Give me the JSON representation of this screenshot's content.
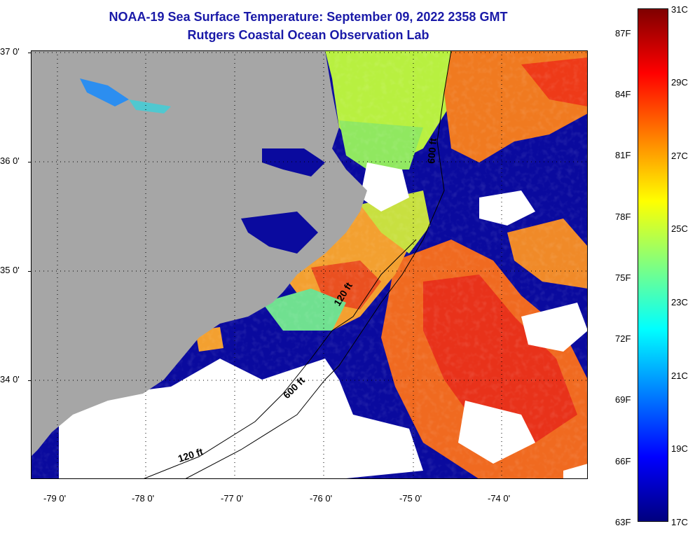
{
  "title": {
    "line1": "NOAA-19 Sea Surface Temperature:  September 09, 2022 2358 GMT",
    "line2": "Rutgers Coastal Ocean Observation Lab"
  },
  "map": {
    "lon_labels": [
      "-79 0'",
      "-78 0'",
      "-77 0'",
      "-76 0'",
      "-75 0'",
      "-74 0'"
    ],
    "lat_labels": [
      "37 0'",
      "36 0'",
      "35 0'",
      "34 0'"
    ],
    "isobaths": [
      {
        "label": "120 ft"
      },
      {
        "label": "120 ft"
      },
      {
        "label": "600 ft"
      },
      {
        "label": "600 ft"
      }
    ],
    "colors": {
      "land": "#a6a6a6",
      "cloud": "#ffffff",
      "cold": "#0a0a9e"
    }
  },
  "colorbar": {
    "fahrenheit": [
      "87F",
      "84F",
      "81F",
      "78F",
      "75F",
      "72F",
      "69F",
      "66F",
      "63F"
    ],
    "celsius": [
      "31C",
      "29C",
      "27C",
      "25C",
      "23C",
      "21C",
      "19C",
      "17C"
    ],
    "range_c": [
      17,
      31
    ],
    "stops": [
      "#00007f",
      "#0000ff",
      "#0080ff",
      "#00ffff",
      "#80ff80",
      "#ffff00",
      "#ff8000",
      "#ff0000",
      "#7f0000"
    ]
  }
}
